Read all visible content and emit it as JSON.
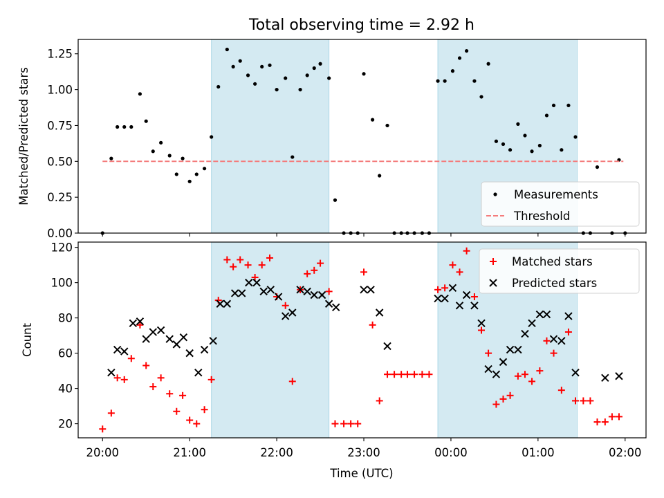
{
  "chart_data": {
    "title": "Total observing time = 2.92 h",
    "x_label": "Time (UTC)",
    "x_units": "hours after 20:00 UTC",
    "x_ticks": [
      {
        "value": 0,
        "label": "20:00"
      },
      {
        "value": 1,
        "label": "21:00"
      },
      {
        "value": 2,
        "label": "22:00"
      },
      {
        "value": 3,
        "label": "23:00"
      },
      {
        "value": 4,
        "label": "00:00"
      },
      {
        "value": 5,
        "label": "01:00"
      },
      {
        "value": 6,
        "label": "02:00"
      }
    ],
    "x_range": [
      -0.28,
      6.24
    ],
    "shaded_intervals": [
      {
        "start": 1.25,
        "end": 2.6,
        "color": "#add8e6"
      },
      {
        "start": 3.85,
        "end": 5.45,
        "color": "#add8e6"
      }
    ],
    "charts": [
      {
        "type": "scatter",
        "y_label": "Matched/Predicted stars",
        "y_range": [
          0,
          1.35
        ],
        "y_ticks": [
          {
            "value": 0.0,
            "label": "0.00"
          },
          {
            "value": 0.25,
            "label": "0.25"
          },
          {
            "value": 0.5,
            "label": "0.50"
          },
          {
            "value": 0.75,
            "label": "0.75"
          },
          {
            "value": 1.0,
            "label": "1.00"
          },
          {
            "value": 1.25,
            "label": "1.25"
          }
        ],
        "legend": {
          "position": "lower-right",
          "entries": [
            "Measurements",
            "Threshold"
          ]
        },
        "series": [
          {
            "name": "Measurements",
            "marker": "dot",
            "color": "#000000",
            "x": [
              0,
              0.1,
              0.17,
              0.25,
              0.33,
              0.43,
              0.5,
              0.58,
              0.67,
              0.77,
              0.85,
              0.92,
              1.0,
              1.08,
              1.17,
              1.25,
              1.33,
              1.43,
              1.5,
              1.58,
              1.67,
              1.75,
              1.83,
              1.92,
              2.0,
              2.1,
              2.18,
              2.27,
              2.35,
              2.43,
              2.5,
              2.6,
              2.67,
              2.77,
              2.85,
              2.93,
              3.0,
              3.1,
              3.18,
              3.27,
              3.35,
              3.43,
              3.5,
              3.58,
              3.67,
              3.75,
              3.85,
              3.93,
              4.02,
              4.1,
              4.18,
              4.27,
              4.35,
              4.43,
              4.52,
              4.6,
              4.68,
              4.77,
              4.85,
              4.93,
              5.02,
              5.1,
              5.18,
              5.27,
              5.35,
              5.43,
              5.52,
              5.6,
              5.68,
              5.85,
              5.93,
              6.0
            ],
            "y": [
              0,
              0.52,
              0.74,
              0.74,
              0.74,
              0.97,
              0.78,
              0.57,
              0.63,
              0.54,
              0.41,
              0.52,
              0.36,
              0.41,
              0.45,
              0.67,
              1.02,
              1.28,
              1.16,
              1.2,
              1.1,
              1.04,
              1.16,
              1.17,
              1.0,
              1.08,
              0.53,
              1.0,
              1.1,
              1.15,
              1.18,
              1.08,
              0.23,
              0,
              0,
              0,
              1.11,
              0.79,
              0.4,
              0.75,
              0,
              0,
              0,
              0,
              0,
              0,
              1.06,
              1.06,
              1.13,
              1.22,
              1.27,
              1.06,
              0.95,
              1.18,
              0.64,
              0.62,
              0.58,
              0.76,
              0.68,
              0.57,
              0.61,
              0.82,
              0.89,
              0.58,
              0.89,
              0.67,
              0,
              0,
              0.46,
              0,
              0.51,
              0
            ]
          },
          {
            "name": "Threshold",
            "marker": "dashed-line",
            "color": "#f47c7c",
            "x": [
              0,
              5.98
            ],
            "y": [
              0.5,
              0.5
            ]
          }
        ]
      },
      {
        "type": "scatter",
        "y_label": "Count",
        "y_range": [
          12,
          123
        ],
        "y_ticks": [
          {
            "value": 20,
            "label": "20"
          },
          {
            "value": 40,
            "label": "40"
          },
          {
            "value": 60,
            "label": "60"
          },
          {
            "value": 80,
            "label": "80"
          },
          {
            "value": 100,
            "label": "100"
          },
          {
            "value": 120,
            "label": "120"
          }
        ],
        "legend": {
          "position": "upper-right",
          "entries": [
            "Matched stars",
            "Predicted stars"
          ]
        },
        "series": [
          {
            "name": "Matched stars",
            "marker": "plus",
            "color": "#ff0000",
            "x": [
              0,
              0.1,
              0.17,
              0.25,
              0.33,
              0.43,
              0.5,
              0.58,
              0.67,
              0.77,
              0.85,
              0.92,
              1.0,
              1.08,
              1.17,
              1.25,
              1.33,
              1.43,
              1.5,
              1.58,
              1.67,
              1.75,
              1.83,
              1.92,
              2.0,
              2.1,
              2.18,
              2.27,
              2.35,
              2.43,
              2.5,
              2.6,
              2.67,
              2.77,
              2.85,
              2.93,
              3.0,
              3.1,
              3.18,
              3.27,
              3.35,
              3.43,
              3.5,
              3.58,
              3.67,
              3.75,
              3.85,
              3.93,
              4.02,
              4.1,
              4.18,
              4.27,
              4.35,
              4.43,
              4.52,
              4.6,
              4.68,
              4.77,
              4.85,
              4.93,
              5.02,
              5.1,
              5.18,
              5.27,
              5.35,
              5.43,
              5.52,
              5.6,
              5.68,
              5.77,
              5.85,
              5.93
            ],
            "y": [
              17,
              26,
              46,
              45,
              57,
              76,
              53,
              41,
              46,
              37,
              27,
              36,
              22,
              20,
              28,
              45,
              90,
              113,
              109,
              113,
              110,
              103,
              110,
              114,
              92,
              87,
              44,
              96,
              105,
              107,
              111,
              95,
              20,
              20,
              20,
              20,
              106,
              76,
              33,
              48,
              48,
              48,
              48,
              48,
              48,
              48,
              96,
              97,
              110,
              106,
              118,
              92,
              73,
              60,
              31,
              34,
              36,
              47,
              48,
              44,
              50,
              67,
              60,
              39,
              72,
              33,
              33,
              33,
              21,
              21,
              24,
              24
            ]
          },
          {
            "name": "Predicted stars",
            "marker": "x",
            "color": "#000000",
            "x": [
              0.1,
              0.17,
              0.25,
              0.35,
              0.43,
              0.5,
              0.58,
              0.67,
              0.77,
              0.85,
              0.93,
              1.0,
              1.1,
              1.17,
              1.27,
              1.35,
              1.43,
              1.52,
              1.6,
              1.68,
              1.77,
              1.85,
              1.93,
              2.02,
              2.1,
              2.18,
              2.27,
              2.35,
              2.43,
              2.52,
              2.6,
              2.68,
              3.0,
              3.08,
              3.18,
              3.27,
              3.85,
              3.93,
              4.02,
              4.1,
              4.18,
              4.27,
              4.35,
              4.43,
              4.52,
              4.6,
              4.68,
              4.77,
              4.85,
              4.93,
              5.02,
              5.1,
              5.18,
              5.27,
              5.35,
              5.43,
              5.77,
              5.93
            ],
            "y": [
              49,
              62,
              61,
              77,
              78,
              68,
              72,
              73,
              68,
              65,
              69,
              60,
              49,
              62,
              67,
              88,
              88,
              94,
              94,
              100,
              100,
              95,
              96,
              92,
              81,
              83,
              96,
              95,
              93,
              93,
              88,
              86,
              96,
              96,
              83,
              64,
              91,
              91,
              97,
              87,
              93,
              87,
              77,
              51,
              48,
              55,
              62,
              62,
              71,
              77,
              82,
              82,
              68,
              67,
              81,
              49,
              46,
              47
            ]
          }
        ]
      }
    ]
  }
}
